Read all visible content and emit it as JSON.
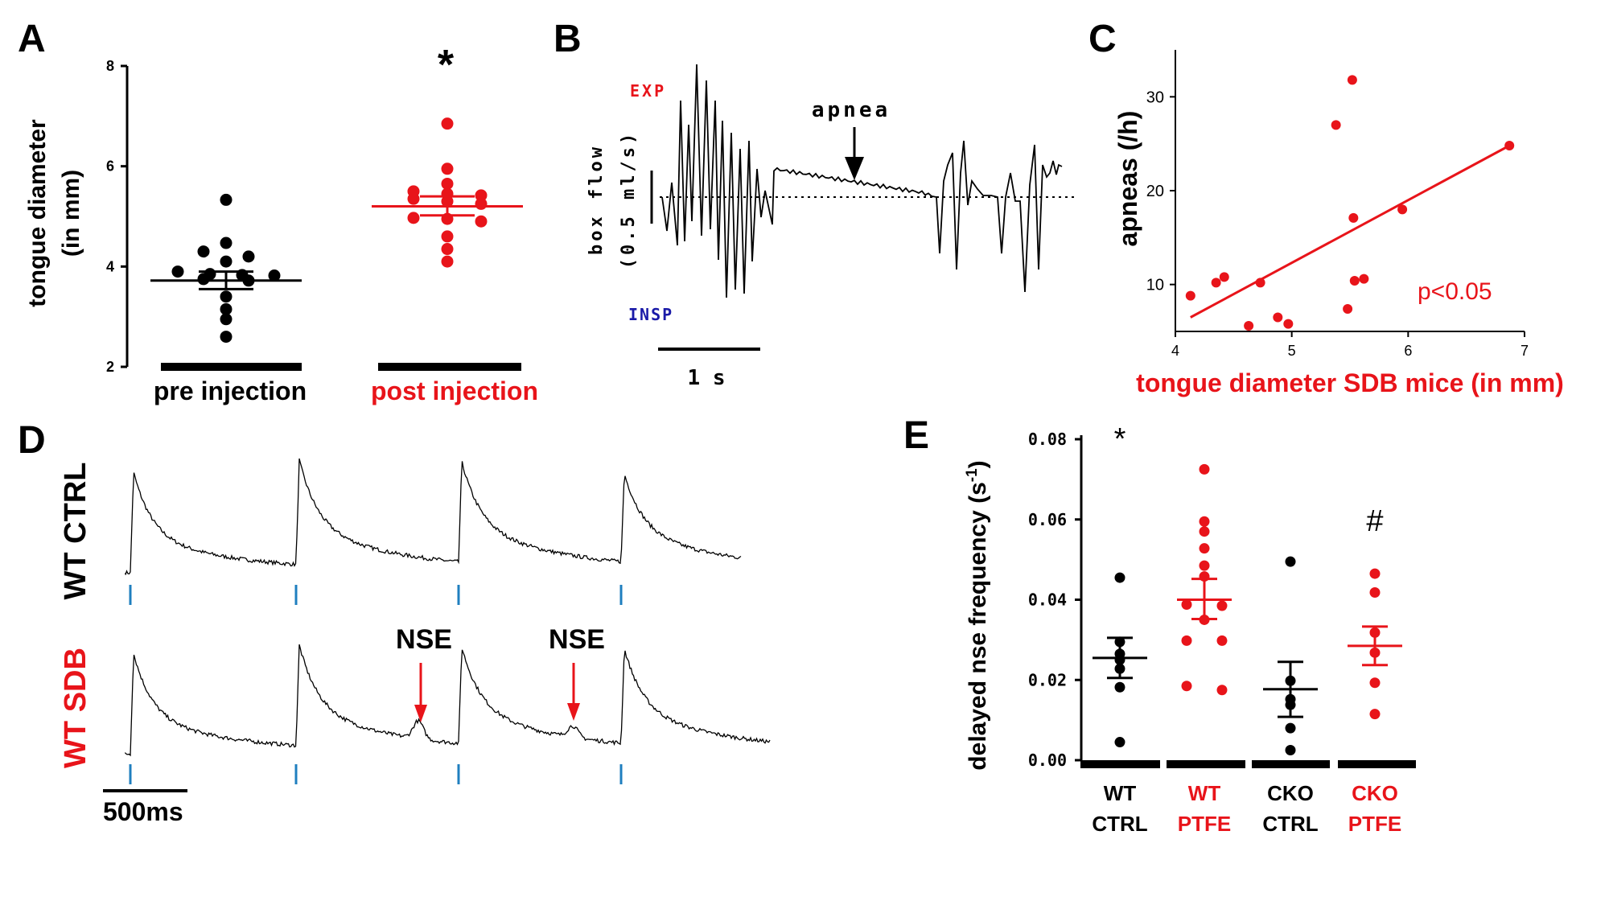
{
  "colors": {
    "black": "#000000",
    "red": "#e8141a",
    "blue": "#1a1aa8",
    "stim": "#1f7fbf"
  },
  "panelA": {
    "letter": "A",
    "ylabel_line1": "tongue diameter",
    "ylabel_line2": "(in mm)",
    "yticks": [
      "2",
      "4",
      "6",
      "8"
    ],
    "group_labels": [
      "pre injection",
      "post injection"
    ],
    "significance": "*",
    "chart_data": {
      "type": "scatter",
      "ylim": [
        2,
        8
      ],
      "series": [
        {
          "name": "pre injection",
          "mean": 3.72,
          "sem_low": 3.55,
          "sem_high": 3.9,
          "values": [
            5.33,
            4.47,
            4.3,
            4.2,
            4.1,
            3.9,
            3.85,
            3.83,
            3.82,
            3.75,
            3.72,
            3.4,
            3.15,
            2.95,
            2.6
          ]
        },
        {
          "name": "post injection",
          "mean": 5.2,
          "sem_low": 5.02,
          "sem_high": 5.4,
          "values": [
            6.85,
            5.95,
            5.65,
            5.5,
            5.45,
            5.42,
            5.35,
            5.3,
            5.25,
            4.97,
            4.95,
            4.9,
            4.6,
            4.35,
            4.1
          ]
        }
      ]
    }
  },
  "panelB": {
    "letter": "B",
    "exp_label": "EXP",
    "insp_label": "INSP",
    "ylabel_line1": "box flow",
    "ylabel_line2": "(0.5 ml/s)",
    "apnea_label": "apnea",
    "time_label": "1 s"
  },
  "panelC": {
    "letter": "C",
    "ylabel": "apneas (/h)",
    "xlabel": "tongue diameter SDB mice (in mm)",
    "stat_label": "p<0.05",
    "xticks": [
      "4",
      "5",
      "6",
      "7"
    ],
    "yticks": [
      "10",
      "20",
      "30"
    ],
    "chart_data": {
      "type": "scatter",
      "xlim": [
        4,
        7
      ],
      "ylim": [
        5,
        35
      ],
      "points": [
        [
          4.13,
          8.8
        ],
        [
          4.35,
          10.2
        ],
        [
          4.42,
          10.8
        ],
        [
          4.63,
          5.6
        ],
        [
          4.73,
          10.2
        ],
        [
          4.88,
          6.5
        ],
        [
          4.97,
          5.8
        ],
        [
          5.38,
          27
        ],
        [
          5.48,
          7.4
        ],
        [
          5.52,
          31.8
        ],
        [
          5.53,
          17.1
        ],
        [
          5.54,
          10.4
        ],
        [
          5.62,
          10.6
        ],
        [
          5.95,
          18
        ],
        [
          6.87,
          24.8
        ]
      ],
      "fit": [
        [
          4.13,
          6.5
        ],
        [
          6.87,
          24.8
        ]
      ]
    }
  },
  "panelD": {
    "letter": "D",
    "row1_label": "WT CTRL",
    "row2_label": "WT SDB",
    "nse_label": "NSE",
    "scale_label": "500ms"
  },
  "panelE": {
    "letter": "E",
    "ylabel_main": "delayed nse frequency (s",
    "ylabel_sup": "-1",
    "ylabel_end": ")",
    "yticks": [
      "0.00",
      "0.02",
      "0.04",
      "0.06",
      "0.08"
    ],
    "groups": [
      {
        "line1": "WT",
        "line2": "CTRL",
        "color": "#000000"
      },
      {
        "line1": "WT",
        "line2": "PTFE",
        "color": "#e8141a"
      },
      {
        "line1": "CKO",
        "line2": "CTRL",
        "color": "#000000"
      },
      {
        "line1": "CKO",
        "line2": "PTFE",
        "color": "#e8141a"
      }
    ],
    "marks": [
      "*",
      "",
      "",
      "#"
    ],
    "chart_data": {
      "type": "scatter",
      "ylim": [
        0,
        0.08
      ],
      "series": [
        {
          "name": "WT CTRL",
          "mean": 0.0255,
          "sem_low": 0.0205,
          "sem_high": 0.0305,
          "values": [
            0.0455,
            0.0295,
            0.0265,
            0.025,
            0.0228,
            0.0182,
            0.0045
          ]
        },
        {
          "name": "WT PTFE",
          "mean": 0.04,
          "sem_low": 0.0352,
          "sem_high": 0.0452,
          "values": [
            0.0725,
            0.0595,
            0.057,
            0.0528,
            0.0485,
            0.0458,
            0.0388,
            0.0385,
            0.035,
            0.0298,
            0.0298,
            0.0185,
            0.0175
          ]
        },
        {
          "name": "CKO CTRL",
          "mean": 0.0177,
          "sem_low": 0.0108,
          "sem_high": 0.0245,
          "values": [
            0.0495,
            0.0198,
            0.0152,
            0.0138,
            0.008,
            0.0025
          ]
        },
        {
          "name": "CKO PTFE",
          "mean": 0.0285,
          "sem_low": 0.0237,
          "sem_high": 0.0333,
          "values": [
            0.0465,
            0.0418,
            0.0318,
            0.0268,
            0.0193,
            0.0115
          ]
        }
      ]
    }
  }
}
